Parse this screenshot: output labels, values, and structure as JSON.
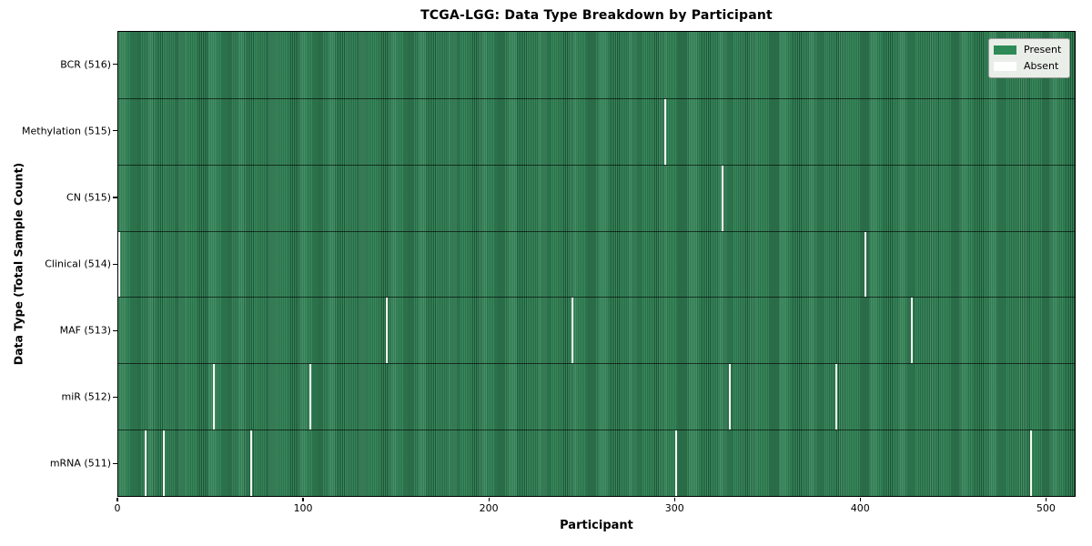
{
  "legend": {
    "items": [
      {
        "label": "Present",
        "color": "#2e8b57"
      },
      {
        "label": "Absent",
        "color": "#ffffff"
      }
    ]
  },
  "chart_data": {
    "type": "heatmap",
    "title": "TCGA-LGG: Data Type Breakdown by Participant",
    "xlabel": "Participant",
    "ylabel": "Data Type (Total Sample Count)",
    "xlim": [
      0,
      516
    ],
    "x_ticks": [
      0,
      100,
      200,
      300,
      400,
      500
    ],
    "total_participants": 516,
    "present_color": "#2e8b57",
    "absent_color": "#ffffff",
    "grid": false,
    "legend_position": "upper right",
    "legend_entries": [
      "Present",
      "Absent"
    ],
    "rows": [
      {
        "label": "BCR (516)",
        "data_type": "BCR",
        "sample_count": 516,
        "absent_participants": []
      },
      {
        "label": "Methylation (515)",
        "data_type": "Methylation",
        "sample_count": 515,
        "absent_participants": [
          294
        ]
      },
      {
        "label": "CN (515)",
        "data_type": "CN",
        "sample_count": 515,
        "absent_participants": [
          325
        ]
      },
      {
        "label": "Clinical (514)",
        "data_type": "Clinical",
        "sample_count": 514,
        "absent_participants": [
          0,
          402
        ]
      },
      {
        "label": "MAF (513)",
        "data_type": "MAF",
        "sample_count": 513,
        "absent_participants": [
          144,
          244,
          427
        ]
      },
      {
        "label": "miR (512)",
        "data_type": "miR",
        "sample_count": 512,
        "absent_participants": [
          51,
          103,
          329,
          386
        ]
      },
      {
        "label": "mRNA (511)",
        "data_type": "mRNA",
        "sample_count": 511,
        "absent_participants": [
          14,
          24,
          71,
          300,
          491
        ]
      }
    ]
  }
}
